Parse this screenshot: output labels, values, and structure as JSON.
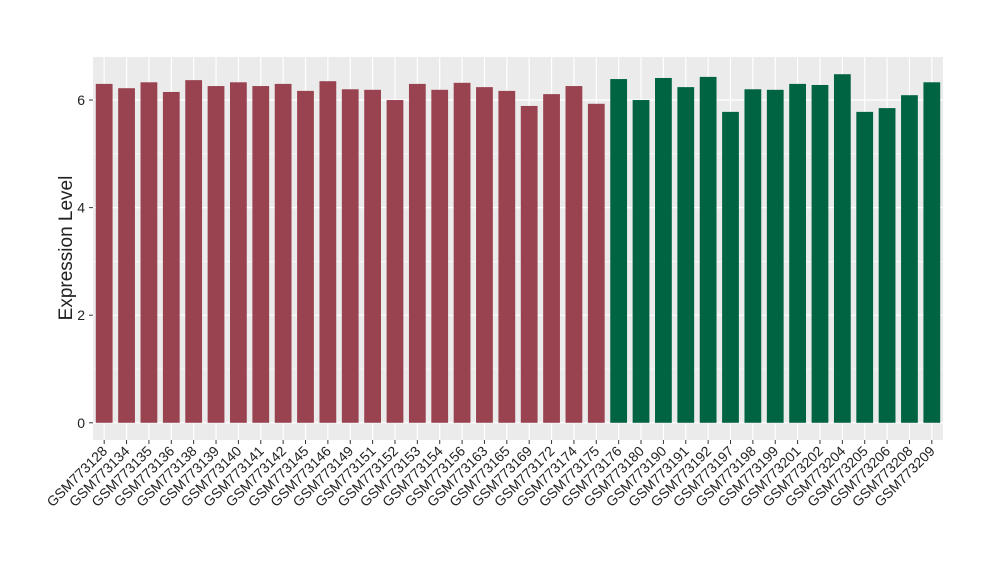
{
  "chart_data": {
    "type": "bar",
    "y_label": "Expression Level",
    "categories": [
      "GSM773128",
      "GSM773134",
      "GSM773135",
      "GSM773136",
      "GSM773138",
      "GSM773139",
      "GSM773140",
      "GSM773141",
      "GSM773142",
      "GSM773145",
      "GSM773146",
      "GSM773149",
      "GSM773151",
      "GSM773152",
      "GSM773153",
      "GSM773154",
      "GSM773156",
      "GSM773163",
      "GSM773165",
      "GSM773169",
      "GSM773172",
      "GSM773174",
      "GSM773175",
      "GSM773176",
      "GSM773180",
      "GSM773190",
      "GSM773191",
      "GSM773192",
      "GSM773197",
      "GSM773198",
      "GSM773199",
      "GSM773201",
      "GSM773202",
      "GSM773204",
      "GSM773205",
      "GSM773206",
      "GSM773208",
      "GSM773209"
    ],
    "values": [
      6.3,
      6.22,
      6.33,
      6.15,
      6.37,
      6.26,
      6.33,
      6.26,
      6.3,
      6.17,
      6.35,
      6.2,
      6.19,
      6.0,
      6.3,
      6.19,
      6.32,
      6.24,
      6.17,
      5.89,
      6.11,
      6.26,
      5.93,
      6.39,
      6.0,
      6.41,
      6.24,
      6.43,
      5.78,
      6.2,
      6.19,
      6.3,
      6.28,
      6.48,
      5.78,
      5.85,
      6.09,
      6.33
    ],
    "colors": [
      "#9a4350",
      "#9a4350",
      "#9a4350",
      "#9a4350",
      "#9a4350",
      "#9a4350",
      "#9a4350",
      "#9a4350",
      "#9a4350",
      "#9a4350",
      "#9a4350",
      "#9a4350",
      "#9a4350",
      "#9a4350",
      "#9a4350",
      "#9a4350",
      "#9a4350",
      "#9a4350",
      "#9a4350",
      "#9a4350",
      "#9a4350",
      "#9a4350",
      "#9a4350",
      "#006442",
      "#006442",
      "#006442",
      "#006442",
      "#006442",
      "#006442",
      "#006442",
      "#006442",
      "#006442",
      "#006442",
      "#006442",
      "#006442",
      "#006442",
      "#006442",
      "#006442"
    ],
    "ylim": [
      -0.32,
      6.8
    ],
    "yticks": [
      0,
      2,
      4,
      6
    ],
    "grid": true
  }
}
